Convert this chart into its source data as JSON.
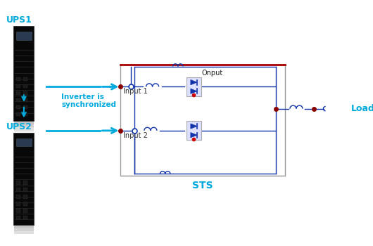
{
  "bg_color": "#ffffff",
  "blue": "#00aadd",
  "dark_blue": "#1133aa",
  "dark_red": "#880000",
  "red_border": "#aa0000",
  "gray": "#999999",
  "ups1_label": "UPS1",
  "ups2_label": "UPS2",
  "inverter_label": "Inverter is\nsynchronized",
  "input1_label": "Input 1",
  "input2_label": "Input 2",
  "output_label": "Onput",
  "sts_label": "STS",
  "load_label": "Load",
  "label_fontsize": 9,
  "small_fontsize": 7.5
}
